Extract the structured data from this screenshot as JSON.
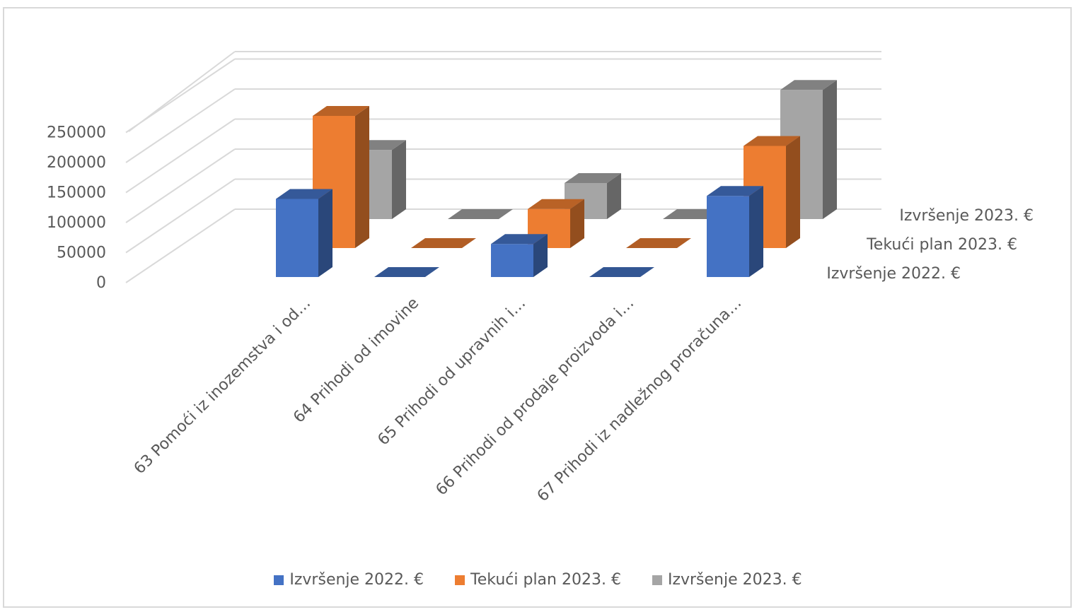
{
  "chart_data": {
    "type": "bar",
    "title": "",
    "xlabel": "",
    "ylabel": "",
    "ylim": [
      0,
      250000
    ],
    "y_ticks": [
      "0",
      "50000",
      "100000",
      "150000",
      "200000",
      "250000"
    ],
    "grid": true,
    "legend_position": "bottom",
    "categories": [
      "63 Pomoći iz inozemstva i od…",
      "64 Prihodi od imovine",
      "65 Prihodi od upravnih i…",
      "66 Prihodi od prodaje proizvoda i…",
      "67 Prihodi iz nadležnog proračuna…"
    ],
    "series": [
      {
        "name": "Izvršenje 2022. €",
        "color": "#4472C4",
        "values": [
          130000,
          0,
          55000,
          0,
          135000
        ]
      },
      {
        "name": "Tekući plan 2023. €",
        "color": "#ED7D31",
        "values": [
          220000,
          0,
          65000,
          0,
          170000
        ]
      },
      {
        "name": "Izvršenje 2023. €",
        "color": "#A5A5A5",
        "values": [
          115000,
          0,
          60000,
          0,
          215000
        ]
      }
    ]
  }
}
